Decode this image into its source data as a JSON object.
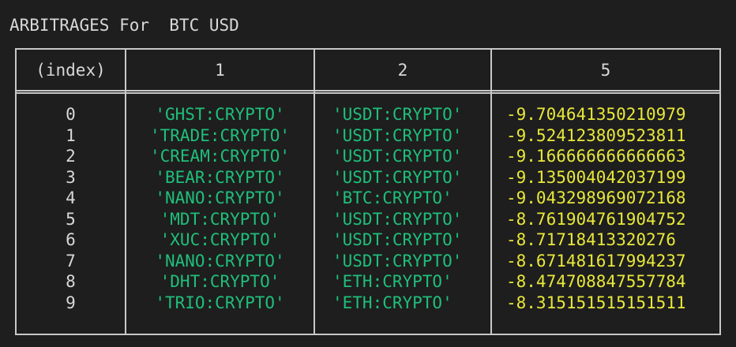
{
  "title": "ARBITRAGES For  BTC USD",
  "colors": {
    "background": "#1e1e1e",
    "text": "#d8d8d8",
    "symbol": "#1fbf7a",
    "value": "#e8e83a",
    "border": "#c8c8c8"
  },
  "columns": [
    "(index)",
    "1",
    "2",
    "5"
  ],
  "rows": [
    {
      "index": "0",
      "c1": "'GHST:CRYPTO'",
      "c2": "'USDT:CRYPTO'",
      "c5": "-9.704641350210979"
    },
    {
      "index": "1",
      "c1": "'TRADE:CRYPTO'",
      "c2": "'USDT:CRYPTO'",
      "c5": "-9.524123809523811"
    },
    {
      "index": "2",
      "c1": "'CREAM:CRYPTO'",
      "c2": "'USDT:CRYPTO'",
      "c5": "-9.166666666666663"
    },
    {
      "index": "3",
      "c1": "'BEAR:CRYPTO'",
      "c2": "'USDT:CRYPTO'",
      "c5": "-9.135004042037199"
    },
    {
      "index": "4",
      "c1": "'NANO:CRYPTO'",
      "c2": "'BTC:CRYPTO'",
      "c5": "-9.043298969072168"
    },
    {
      "index": "5",
      "c1": "'MDT:CRYPTO'",
      "c2": "'USDT:CRYPTO'",
      "c5": "-8.761904761904752"
    },
    {
      "index": "6",
      "c1": "'XUC:CRYPTO'",
      "c2": "'USDT:CRYPTO'",
      "c5": "-8.71718413320276"
    },
    {
      "index": "7",
      "c1": "'NANO:CRYPTO'",
      "c2": "'USDT:CRYPTO'",
      "c5": "-8.671481617994237"
    },
    {
      "index": "8",
      "c1": "'DHT:CRYPTO'",
      "c2": "'ETH:CRYPTO'",
      "c5": "-8.474708847557784"
    },
    {
      "index": "9",
      "c1": "'TRIO:CRYPTO'",
      "c2": "'ETH:CRYPTO'",
      "c5": "-8.315151515151511"
    }
  ]
}
